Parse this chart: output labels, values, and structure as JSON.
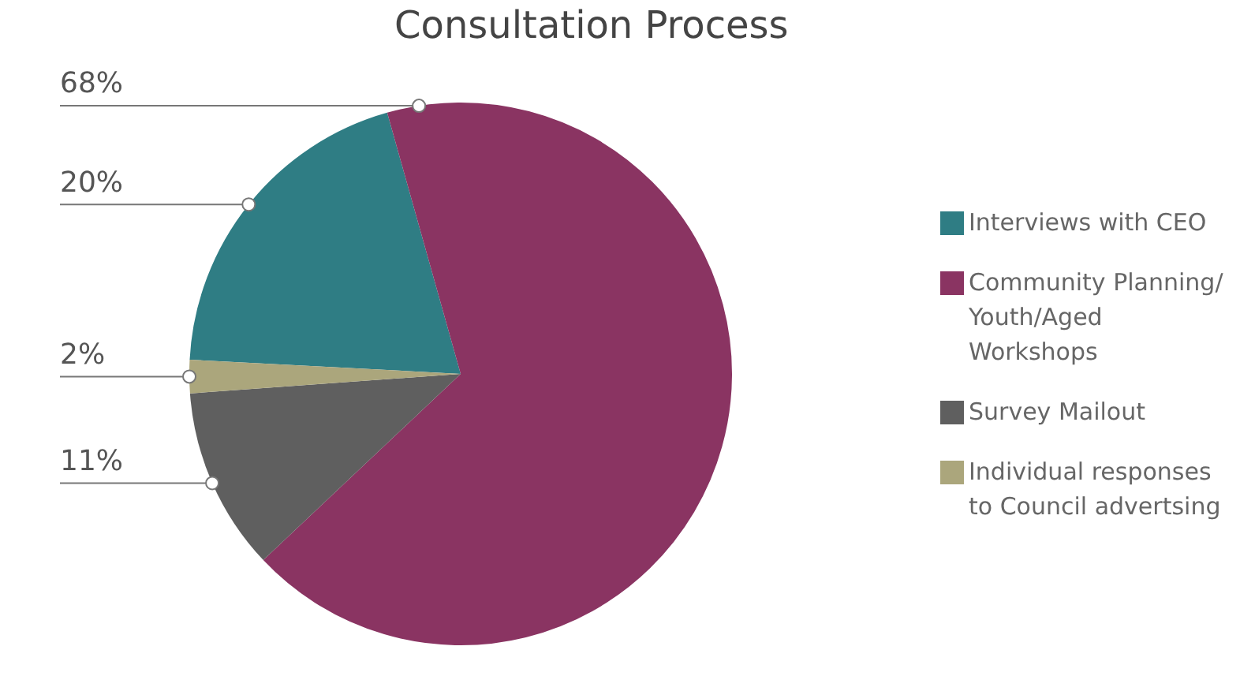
{
  "chart_data": {
    "type": "pie",
    "title": "Consultation Process",
    "categories": [
      "Interviews with CEO",
      "Community Planning/ Youth/Aged Workshops",
      "Survey Mailout",
      "Individual responses to Council advertsing"
    ],
    "values": [
      20,
      68,
      11,
      2
    ],
    "colors": [
      "#2f7d84",
      "#8a3462",
      "#5f5f5f",
      "#aba67c"
    ],
    "value_labels": [
      "20%",
      "68%",
      "11%",
      "2%"
    ],
    "legend": "right"
  }
}
